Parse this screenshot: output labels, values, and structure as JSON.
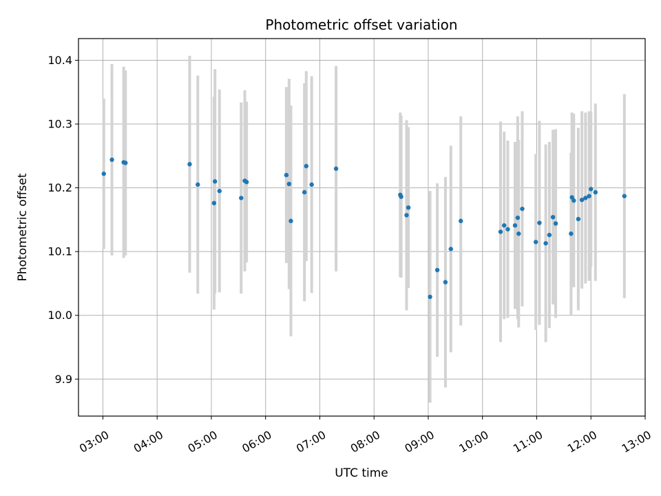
{
  "chart_data": {
    "type": "scatter",
    "title": "Photometric offset variation",
    "xlabel": "UTC time",
    "ylabel": "Photometric offset",
    "xlim": [
      "02:33",
      "13:00"
    ],
    "ylim": [
      9.842,
      10.434
    ],
    "x_ticks": [
      "03:00",
      "04:00",
      "05:00",
      "06:00",
      "07:00",
      "08:00",
      "09:00",
      "10:00",
      "11:00",
      "12:00",
      "13:00"
    ],
    "y_ticks": [
      "9.9",
      "10.0",
      "10.1",
      "10.2",
      "10.3",
      "10.4"
    ],
    "grid": true,
    "colors": {
      "point": "#1f77b4",
      "errorbar": "#d3d3d3",
      "grid": "#b0b0b0"
    },
    "series": [
      {
        "x": [
          "03:01",
          "03:10",
          "03:23",
          "03:25",
          "04:36",
          "04:45",
          "05:03",
          "05:04",
          "05:09",
          "05:33",
          "05:37",
          "05:39",
          "06:23",
          "06:26",
          "06:28",
          "06:43",
          "06:45",
          "06:51",
          "07:18",
          "08:29",
          "08:30",
          "08:36",
          "08:38",
          "09:02",
          "09:10",
          "09:19",
          "09:25",
          "09:36",
          "10:20",
          "10:24",
          "10:28",
          "10:36",
          "10:39",
          "10:40",
          "10:44",
          "10:59",
          "11:03",
          "11:10",
          "11:14",
          "11:18",
          "11:21",
          "11:38",
          "11:39",
          "11:41",
          "11:46",
          "11:50",
          "11:54",
          "11:58",
          "12:00",
          "12:05",
          "12:37"
        ],
        "y": [
          10.222,
          10.244,
          10.24,
          10.239,
          10.237,
          10.205,
          10.176,
          10.21,
          10.195,
          10.184,
          10.211,
          10.209,
          10.22,
          10.206,
          10.148,
          10.193,
          10.234,
          10.205,
          10.23,
          10.189,
          10.186,
          10.157,
          10.169,
          10.029,
          10.071,
          10.052,
          10.104,
          10.148,
          10.131,
          10.141,
          10.135,
          10.141,
          10.153,
          10.128,
          10.167,
          10.115,
          10.145,
          10.113,
          10.126,
          10.154,
          10.144,
          10.128,
          10.185,
          10.18,
          10.151,
          10.181,
          10.184,
          10.187,
          10.198,
          10.193,
          10.187
        ],
        "err": [
          0.118,
          0.15,
          0.15,
          0.145,
          0.17,
          0.171,
          0.167,
          0.176,
          0.159,
          0.15,
          0.142,
          0.126,
          0.138,
          0.165,
          0.181,
          0.171,
          0.149,
          0.17,
          0.161,
          0.129,
          0.127,
          0.149,
          0.126,
          0.166,
          0.136,
          0.165,
          0.162,
          0.164,
          0.173,
          0.147,
          0.139,
          0.131,
          0.159,
          0.147,
          0.153,
          0.138,
          0.16,
          0.155,
          0.146,
          0.137,
          0.148,
          0.127,
          0.133,
          0.136,
          0.143,
          0.139,
          0.134,
          0.133,
          0.122,
          0.139,
          0.16
        ]
      }
    ]
  }
}
